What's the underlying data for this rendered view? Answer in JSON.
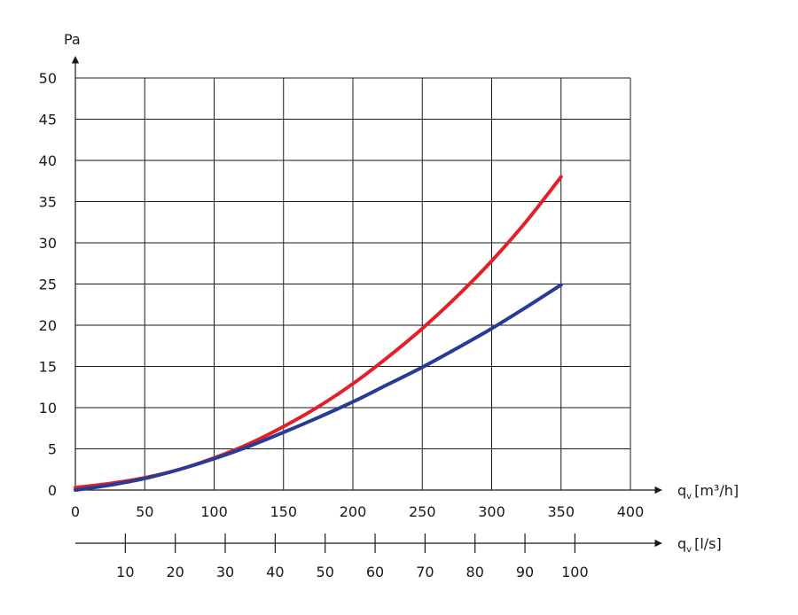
{
  "chart_data": {
    "type": "line",
    "ylabel": "Pa",
    "xlabel": "q",
    "xlabel_sub": "v",
    "xlabel_unit": "[m³/h]",
    "x2label": "q",
    "x2label_sub": "v",
    "x2label_unit": "[l/s]",
    "xlim": [
      0,
      400
    ],
    "ylim": [
      0,
      50
    ],
    "x_ticks": [
      0,
      50,
      100,
      150,
      200,
      250,
      300,
      350,
      400
    ],
    "y_ticks": [
      0,
      5,
      10,
      15,
      20,
      25,
      30,
      35,
      40,
      45,
      50
    ],
    "x2_ticks": [
      10,
      20,
      30,
      40,
      50,
      60,
      70,
      80,
      90,
      100
    ],
    "grid": true,
    "series": [
      {
        "color": "#e3202a",
        "x": [
          0,
          25,
          50,
          75,
          100,
          125,
          150,
          175,
          200,
          225,
          250,
          275,
          300,
          325,
          350
        ],
        "y": [
          0.3,
          0.8,
          1.5,
          2.5,
          3.9,
          5.6,
          7.7,
          10.1,
          12.9,
          16.1,
          19.6,
          23.5,
          27.8,
          32.6,
          38.0
        ]
      },
      {
        "color": "#283c96",
        "x": [
          0,
          25,
          50,
          75,
          100,
          125,
          150,
          175,
          200,
          225,
          250,
          275,
          300,
          325,
          350
        ],
        "y": [
          0.0,
          0.6,
          1.4,
          2.5,
          3.8,
          5.3,
          7.0,
          8.8,
          10.7,
          12.8,
          14.9,
          17.2,
          19.6,
          22.2,
          24.9
        ]
      }
    ]
  }
}
